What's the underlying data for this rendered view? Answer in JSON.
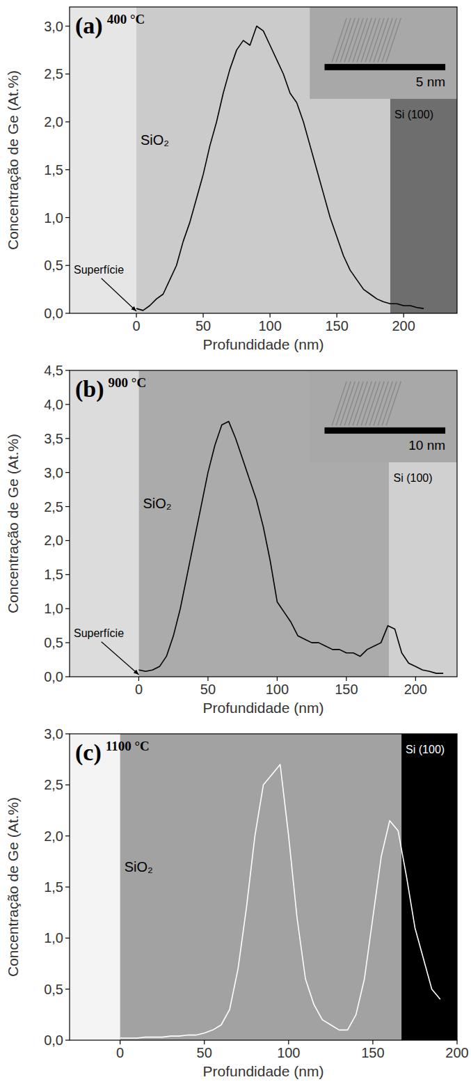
{
  "chart_data": [
    {
      "type": "line",
      "panel": "(a)",
      "title": "400 °C",
      "x_label": "Profundidade (nm)",
      "y_label": "Concentração de Ge (At.%)",
      "xlim": [
        -50,
        240
      ],
      "ylim": [
        0,
        3.2
      ],
      "xticks": [
        0,
        50,
        100,
        150,
        200
      ],
      "yticks": [
        {
          "value": 0,
          "label": "0,0"
        },
        {
          "value": 0.5,
          "label": "0,5"
        },
        {
          "value": 1,
          "label": "1,0"
        },
        {
          "value": 1.5,
          "label": "1,5"
        },
        {
          "value": 2,
          "label": "2,0"
        },
        {
          "value": 2.5,
          "label": "2,5"
        },
        {
          "value": 3,
          "label": "3,0"
        }
      ],
      "color": "#000000",
      "x": [
        0,
        5,
        10,
        15,
        20,
        25,
        30,
        35,
        40,
        45,
        50,
        55,
        60,
        65,
        70,
        75,
        80,
        85,
        90,
        95,
        100,
        105,
        110,
        115,
        120,
        125,
        130,
        135,
        140,
        145,
        150,
        155,
        160,
        165,
        170,
        175,
        180,
        185,
        190,
        195,
        200,
        205,
        210,
        215
      ],
      "values": [
        0.05,
        0.03,
        0.08,
        0.15,
        0.2,
        0.35,
        0.5,
        0.75,
        0.95,
        1.2,
        1.45,
        1.75,
        2.0,
        2.3,
        2.55,
        2.75,
        2.85,
        2.8,
        3.0,
        2.95,
        2.8,
        2.65,
        2.5,
        2.3,
        2.2,
        2.0,
        1.75,
        1.5,
        1.25,
        1.0,
        0.8,
        0.6,
        0.45,
        0.35,
        0.25,
        0.2,
        0.15,
        0.12,
        0.1,
        0.1,
        0.08,
        0.08,
        0.06,
        0.05
      ],
      "regions": [
        {
          "from": -50,
          "to": 0,
          "color": "#e6e6e6"
        },
        {
          "label": "SiO₂",
          "from": 0,
          "to": 190,
          "color": "#cbcbcb"
        },
        {
          "label": "Si (100)",
          "from": 190,
          "to": 240,
          "color": "#6e6e6e"
        }
      ],
      "surface_label": "Superfície",
      "inset_scale": "5 nm"
    },
    {
      "type": "line",
      "panel": "(b)",
      "title": "900 °C",
      "x_label": "Profundidade (nm)",
      "y_label": "Concentração de Ge (At.%)",
      "xlim": [
        -50,
        230
      ],
      "ylim": [
        0,
        4.5
      ],
      "xticks": [
        0,
        50,
        100,
        150,
        200
      ],
      "yticks": [
        {
          "value": 0,
          "label": "0,0"
        },
        {
          "value": 0.5,
          "label": "0,5"
        },
        {
          "value": 1,
          "label": "1,0"
        },
        {
          "value": 1.5,
          "label": "1,5"
        },
        {
          "value": 2,
          "label": "2,0"
        },
        {
          "value": 2.5,
          "label": "2,5"
        },
        {
          "value": 3,
          "label": "3,0"
        },
        {
          "value": 3.5,
          "label": "3,5"
        },
        {
          "value": 4,
          "label": "4,0"
        },
        {
          "value": 4.5,
          "label": "4,5"
        }
      ],
      "color": "#000000",
      "x": [
        0,
        5,
        10,
        15,
        20,
        25,
        30,
        35,
        40,
        45,
        50,
        55,
        60,
        65,
        70,
        75,
        80,
        85,
        90,
        95,
        100,
        105,
        110,
        115,
        120,
        125,
        130,
        135,
        140,
        145,
        150,
        155,
        160,
        165,
        170,
        175,
        180,
        185,
        190,
        195,
        200,
        205,
        210,
        215,
        220
      ],
      "values": [
        0.1,
        0.08,
        0.1,
        0.15,
        0.3,
        0.6,
        1.0,
        1.5,
        2.0,
        2.5,
        3.0,
        3.4,
        3.7,
        3.75,
        3.5,
        3.2,
        2.9,
        2.6,
        2.2,
        1.7,
        1.1,
        0.95,
        0.8,
        0.6,
        0.55,
        0.5,
        0.5,
        0.45,
        0.4,
        0.4,
        0.35,
        0.35,
        0.3,
        0.4,
        0.45,
        0.5,
        0.75,
        0.7,
        0.35,
        0.2,
        0.15,
        0.1,
        0.08,
        0.05,
        0.05
      ],
      "regions": [
        {
          "from": -50,
          "to": 0,
          "color": "#dcdcdc"
        },
        {
          "label": "SiO₂",
          "from": 0,
          "to": 181,
          "color": "#ababab"
        },
        {
          "label": "Si (100)",
          "from": 181,
          "to": 230,
          "color": "#d0d0d0"
        }
      ],
      "surface_label": "Superfície",
      "inset_scale": "10 nm"
    },
    {
      "type": "line",
      "panel": "(c)",
      "title": "1100 °C",
      "x_label": "Profundidade (nm)",
      "y_label": "Concentração de Ge (At.%)",
      "xlim": [
        -30,
        200
      ],
      "ylim": [
        0,
        3.0
      ],
      "xticks": [
        0,
        50,
        100,
        150,
        200
      ],
      "yticks": [
        {
          "value": 0,
          "label": "0,0"
        },
        {
          "value": 0.5,
          "label": "0,5"
        },
        {
          "value": 1,
          "label": "1,0"
        },
        {
          "value": 1.5,
          "label": "1,5"
        },
        {
          "value": 2,
          "label": "2,0"
        },
        {
          "value": 2.5,
          "label": "2,5"
        },
        {
          "value": 3,
          "label": "3,0"
        }
      ],
      "color": "#ffffff",
      "x": [
        0,
        5,
        10,
        15,
        20,
        25,
        30,
        35,
        40,
        45,
        50,
        55,
        60,
        65,
        70,
        75,
        80,
        85,
        90,
        95,
        100,
        105,
        110,
        115,
        120,
        125,
        130,
        135,
        140,
        145,
        150,
        155,
        160,
        165,
        170,
        175,
        180,
        185,
        190
      ],
      "values": [
        0.02,
        0.02,
        0.02,
        0.03,
        0.03,
        0.03,
        0.04,
        0.04,
        0.05,
        0.05,
        0.07,
        0.1,
        0.15,
        0.3,
        0.7,
        1.3,
        2.0,
        2.5,
        2.6,
        2.7,
        2.0,
        1.2,
        0.6,
        0.35,
        0.2,
        0.15,
        0.1,
        0.1,
        0.25,
        0.6,
        1.2,
        1.8,
        2.15,
        2.05,
        1.6,
        1.1,
        0.8,
        0.5,
        0.4
      ],
      "regions": [
        {
          "from": -30,
          "to": 0,
          "color": "#f4f4f4"
        },
        {
          "label": "SiO₂",
          "from": 0,
          "to": 167,
          "color": "#a2a2a2"
        },
        {
          "label": "Si (100)",
          "from": 167,
          "to": 200,
          "color": "#000000"
        }
      ]
    }
  ]
}
